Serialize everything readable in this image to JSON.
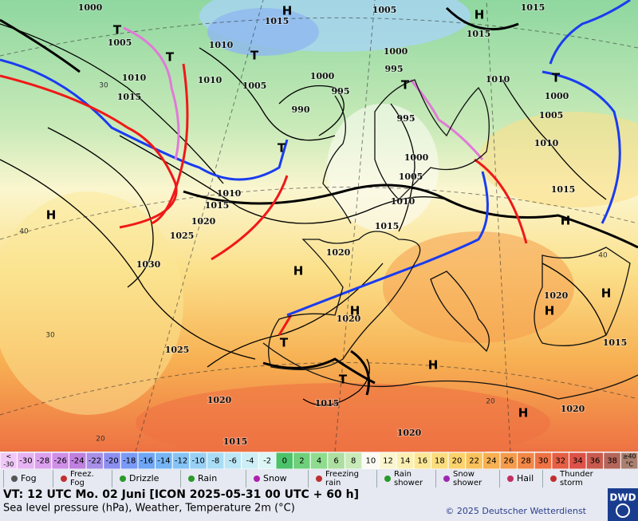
{
  "map": {
    "isobar_labels": [
      1000,
      1015,
      1005,
      1015,
      1005,
      1010,
      1015,
      1000,
      1010,
      1010,
      1005,
      995,
      1000,
      1010,
      1015,
      995,
      990,
      1000,
      995,
      1005,
      1010,
      1000,
      1005,
      1015,
      1010,
      1015,
      1010,
      1020,
      1015,
      1025,
      1020,
      1030,
      1020,
      1020,
      1025,
      1015,
      1020,
      1015,
      1020,
      1020,
      1015
    ],
    "isotherm_labels": [
      40,
      30,
      20,
      40,
      20,
      30
    ],
    "pressure_centers": [
      "H",
      "H",
      "T",
      "T",
      "T",
      "T",
      "T",
      "T",
      "H",
      "H",
      "H",
      "H",
      "H",
      "H",
      "T",
      "T",
      "H",
      "H"
    ]
  },
  "color_scale": {
    "under": [
      "<",
      "-30"
    ],
    "steps": [
      -30,
      -28,
      -26,
      -24,
      -22,
      -20,
      -18,
      -16,
      -14,
      -12,
      -10,
      -8,
      -6,
      -4,
      -2,
      0,
      2,
      4,
      6,
      8,
      10,
      12,
      14,
      16,
      18,
      20,
      22,
      24,
      26,
      28,
      30,
      32,
      34,
      36,
      38
    ],
    "colors": [
      "#e6b3f2",
      "#dca0ee",
      "#cf8fe8",
      "#bf80e0",
      "#a98fe8",
      "#8c8ff0",
      "#7a9af5",
      "#6fa6f5",
      "#76b4f5",
      "#86c3f5",
      "#98d0f5",
      "#a9dcf5",
      "#bce6f5",
      "#cdeef5",
      "#dcf5f5",
      "#4cc26a",
      "#6fd07c",
      "#8fdc8e",
      "#addfa0",
      "#c8eab8",
      "#fbfbf3",
      "#fbf6cf",
      "#fbf0b2",
      "#fbe796",
      "#fbdd80",
      "#fbd26c",
      "#f9c25c",
      "#f7b052",
      "#f59c4c",
      "#f28747",
      "#ee7243",
      "#e65f45",
      "#dc5248",
      "#c95a4e",
      "#b5665a"
    ],
    "under_color": "#f0c8f8",
    "over": [
      "≥40",
      "°C"
    ],
    "over_color": "#a88070"
  },
  "legend": {
    "items": [
      "Fog",
      "Freez. Fog",
      "Drizzle",
      "Rain",
      "Snow",
      "Freezing rain",
      "Rain shower",
      "Snow shower",
      "Hail",
      "Thunder storm"
    ]
  },
  "footer": {
    "valid_time": "VT: 12 UTC Mo.  02 Juni [ICON 2025-05-31  00 UTC + 60 h]",
    "description": "Sea level pressure (hPa), Weather, Temperature 2m (°C)",
    "copyright": "© 2025 Deutscher Wetterdienst",
    "logo": "DWD"
  }
}
